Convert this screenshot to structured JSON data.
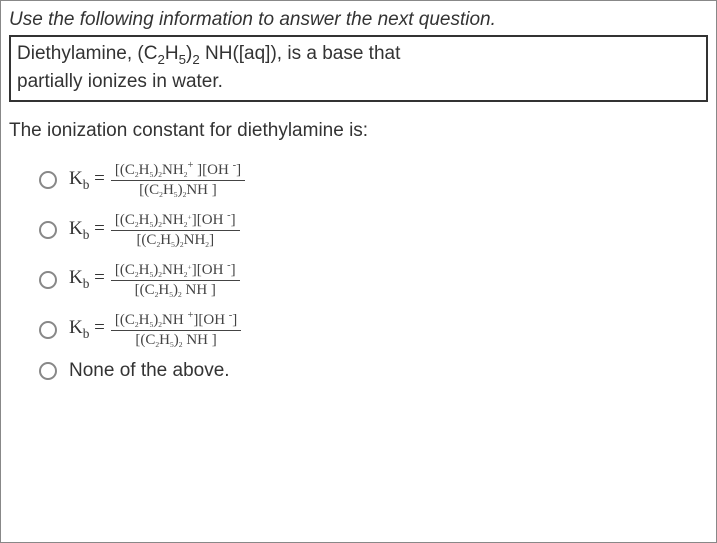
{
  "border_color": "#888",
  "text_color": "#333",
  "background_color": "#ffffff",
  "prompt": "Use the following information to answer the next question.",
  "info_box_html": "Diethylamine, (C<sub>2</sub>H<sub>5</sub>)<sub>2</sub> NH([aq]), is a base that<br>partially ionizes in water.",
  "question": "The ionization constant for diethylamine is:",
  "options": [
    {
      "type": "fraction",
      "left_html": "K<sub>b</sub> =",
      "num_html": "[(C<span class='sbsp'><sub>2</sub></span>H<span class='sbsp'><sub>5</sub></span>)<span class='sbsp'><sub>2</sub></span>NH<span class='sbsp'><sub>2</sub></span><sup>+</sup> ][OH <sup>-</sup>]",
      "den_html": "[(C<span class='sbsp'><sub>2</sub></span>H<span class='sbsp'><sub>5</sub></span>)<span class='sbsp'><sub>2</sub></span>NH ]"
    },
    {
      "type": "fraction",
      "left_html": "K<sub>b</sub> =",
      "num_html": "[(C<span class='sbsp'><sub>2</sub></span>H<span class='sbsp'><sub>5</sub></span>)<span class='sbsp'><sub>2</sub></span>NH<span class='sbsp'><sub>2</sub><sup>+</sup></span>][OH <sup>-</sup>]",
      "den_html": "[(C<span class='sbsp'><sub>2</sub></span>H<span class='sbsp'><sub>5</sub></span>)<span class='sbsp'><sub>2</sub></span>NH<span class='sbsp'><sub>2</sub></span>]"
    },
    {
      "type": "fraction",
      "left_html": "K<sub>b</sub> =",
      "num_html": "[(C<span class='sbsp'><sub>2</sub></span>H<span class='sbsp'><sub>5</sub></span>)<span class='sbsp'><sub>2</sub></span>NH<span class='sbsp'><sub>2</sub><sup>+</sup></span>][OH <sup>-</sup>]",
      "den_html": "[(C<span class='sbsp'><sub>2</sub></span>H<span class='sbsp'><sub>5</sub></span>)<span class='sbsp'><sub>2</sub></span> NH ]"
    },
    {
      "type": "fraction",
      "left_html": "K<sub>b</sub> =",
      "num_html": "[(C<span class='sbsp'><sub>2</sub></span>H<span class='sbsp'><sub>5</sub></span>)<span class='sbsp'><sub>2</sub></span>NH <sup>+</sup>][OH <sup>-</sup>]",
      "den_html": "[(C<span class='sbsp'><sub>2</sub></span>H<span class='sbsp'><sub>5</sub></span>)<span class='sbsp'><sub>2</sub></span> NH ]"
    },
    {
      "type": "plain",
      "text": "None of the above."
    }
  ]
}
